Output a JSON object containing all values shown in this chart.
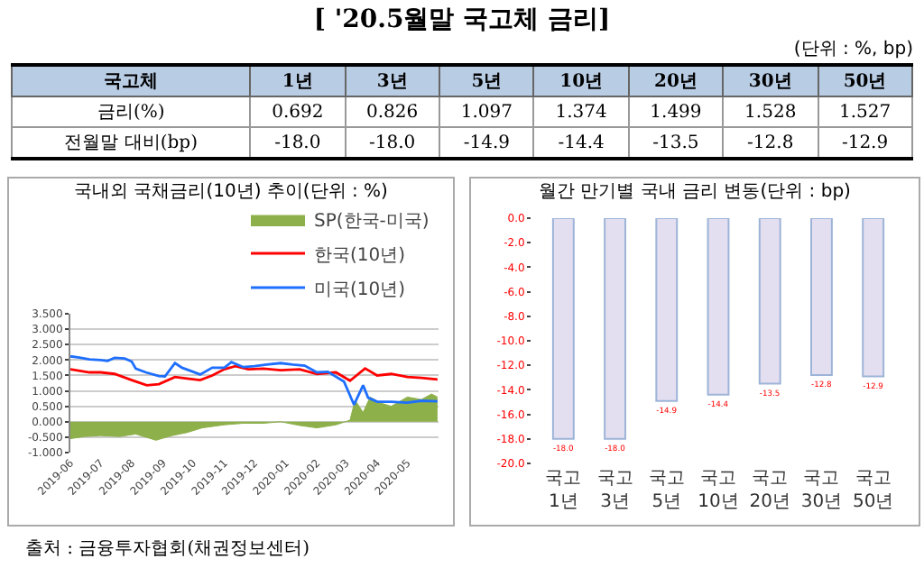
{
  "chart_data": [
    {
      "type": "other",
      "title": "[ '20.5월말 국고체 금리]",
      "subtitle": "(단위 : %, bp)",
      "xlabel": "국고체",
      "categories": [
        "1년",
        "3년",
        "5년",
        "10년",
        "20년",
        "30년",
        "50년"
      ],
      "series": [
        {
          "name": "금리(%)",
          "values": [
            0.692,
            0.826,
            1.097,
            1.374,
            1.499,
            1.528,
            1.527
          ],
          "value_labels": [
            "0.692",
            "0.826",
            "1.097",
            "1.374",
            "1.499",
            "1.528",
            "1.527"
          ]
        },
        {
          "name": "전월말 대비(bp)",
          "values": [
            -18.0,
            -18.0,
            -14.9,
            -14.4,
            -13.5,
            -12.8,
            -12.9
          ],
          "value_labels": [
            "-18.0",
            "-18.0",
            "-14.9",
            "-14.4",
            "-13.5",
            "-12.8",
            "-12.9"
          ]
        }
      ],
      "data_labels": true,
      "annotations": [
        "출처 : 금융투자협회(채권정보센터)"
      ]
    },
    {
      "type": "line",
      "title": "국내외 국채금리(10년) 추이(단위 : %)",
      "xlim": [
        "2019-06-01",
        "2020-06-01"
      ],
      "xticks": [
        {
          "value": "2019-06",
          "label": "2019-06"
        },
        {
          "value": "2019-07",
          "label": "2019-07"
        },
        {
          "value": "2019-08",
          "label": "2019-08"
        },
        {
          "value": "2019-09",
          "label": "2019-09"
        },
        {
          "value": "2019-10",
          "label": "2019-10"
        },
        {
          "value": "2019-11",
          "label": "2019-11"
        },
        {
          "value": "2019-12",
          "label": "2019-12"
        },
        {
          "value": "2020-01",
          "label": "2020-01"
        },
        {
          "value": "2020-02",
          "label": "2020-02"
        },
        {
          "value": "2020-03",
          "label": "2020-03"
        },
        {
          "value": "2020-04",
          "label": "2020-04"
        },
        {
          "value": "2020-05",
          "label": "2020-05"
        }
      ],
      "ylim": [
        -1.0,
        3.5
      ],
      "yticks": [
        {
          "value": -1,
          "label": "-1.000"
        },
        {
          "value": -0.5,
          "label": "-0.500"
        },
        {
          "value": 0,
          "label": "0.000"
        },
        {
          "value": 0.5,
          "label": "0.500"
        },
        {
          "value": 1,
          "label": "1.000"
        },
        {
          "value": 1.5,
          "label": "1.500"
        },
        {
          "value": 2,
          "label": "2.000"
        },
        {
          "value": 2.5,
          "label": "2.500"
        },
        {
          "value": 3,
          "label": "3.000"
        },
        {
          "value": 3.5,
          "label": "3.500"
        }
      ],
      "grid": "y",
      "legend": "top right",
      "marker": "none",
      "line_style": "solid",
      "series": [
        {
          "name": "SP(한국-미국)",
          "type": "area",
          "color": "#8db04a",
          "x": [
            "2019-06-01",
            "2019-06-15",
            "2019-07-01",
            "2019-07-20",
            "2019-08-05",
            "2019-08-25",
            "2019-09-10",
            "2019-09-25",
            "2019-10-10",
            "2019-11-01",
            "2019-11-20",
            "2019-12-10",
            "2019-12-27",
            "2020-01-15",
            "2020-02-01",
            "2020-02-20",
            "2020-03-05",
            "2020-03-10",
            "2020-03-18",
            "2020-03-25",
            "2020-04-05",
            "2020-04-15",
            "2020-05-01",
            "2020-05-15",
            "2020-05-25",
            "2020-05-31"
          ],
          "values": [
            -0.55,
            -0.48,
            -0.45,
            -0.48,
            -0.4,
            -0.6,
            -0.45,
            -0.35,
            -0.2,
            -0.1,
            -0.05,
            -0.05,
            0.0,
            -0.12,
            -0.2,
            -0.1,
            0.05,
            0.7,
            0.3,
            0.8,
            0.6,
            0.5,
            0.8,
            0.72,
            0.9,
            0.8
          ]
        },
        {
          "name": "한국(10년)",
          "type": "line",
          "color": "#ff0000",
          "x": [
            "2019-06-01",
            "2019-06-20",
            "2019-07-01",
            "2019-07-15",
            "2019-08-01",
            "2019-08-16",
            "2019-08-28",
            "2019-09-13",
            "2019-09-25",
            "2019-10-08",
            "2019-10-20",
            "2019-11-01",
            "2019-11-12",
            "2019-11-25",
            "2019-12-10",
            "2019-12-27",
            "2020-01-15",
            "2020-02-01",
            "2020-02-20",
            "2020-03-05",
            "2020-03-20",
            "2020-04-01",
            "2020-04-15",
            "2020-05-01",
            "2020-05-15",
            "2020-05-31"
          ],
          "values": [
            1.7,
            1.6,
            1.6,
            1.55,
            1.35,
            1.18,
            1.22,
            1.45,
            1.4,
            1.35,
            1.5,
            1.7,
            1.8,
            1.7,
            1.72,
            1.67,
            1.7,
            1.55,
            1.6,
            1.33,
            1.73,
            1.5,
            1.55,
            1.45,
            1.42,
            1.37
          ]
        },
        {
          "name": "미국(10년)",
          "type": "line",
          "color": "#1f6fff",
          "x": [
            "2019-06-01",
            "2019-06-10",
            "2019-06-20",
            "2019-07-01",
            "2019-07-08",
            "2019-07-15",
            "2019-07-25",
            "2019-08-01",
            "2019-08-05",
            "2019-08-15",
            "2019-08-28",
            "2019-09-03",
            "2019-09-13",
            "2019-09-20",
            "2019-10-01",
            "2019-10-08",
            "2019-10-20",
            "2019-11-01",
            "2019-11-08",
            "2019-11-20",
            "2019-12-01",
            "2019-12-13",
            "2019-12-27",
            "2020-01-08",
            "2020-01-20",
            "2020-02-01",
            "2020-02-12",
            "2020-02-28",
            "2020-03-09",
            "2020-03-18",
            "2020-03-23",
            "2020-04-01",
            "2020-04-15",
            "2020-05-01",
            "2020-05-15",
            "2020-05-31"
          ],
          "values": [
            2.12,
            2.08,
            2.02,
            2.0,
            1.97,
            2.07,
            2.05,
            1.95,
            1.72,
            1.6,
            1.48,
            1.47,
            1.9,
            1.75,
            1.62,
            1.53,
            1.75,
            1.75,
            1.93,
            1.77,
            1.8,
            1.85,
            1.9,
            1.85,
            1.82,
            1.6,
            1.62,
            1.3,
            0.55,
            1.18,
            0.78,
            0.65,
            0.65,
            0.62,
            0.68,
            0.66
          ]
        }
      ]
    },
    {
      "type": "bar",
      "title": "월간 만기별 국내 금리 변동(단위 : bp)",
      "categories": [
        "국고 1년",
        "국고 3년",
        "국고 5년",
        "국고 10년",
        "국고 20년",
        "국고 30년",
        "국고 50년"
      ],
      "values": [
        -18.0,
        -18.0,
        -14.9,
        -14.4,
        -13.5,
        -12.8,
        -12.9
      ],
      "value_labels": [
        "-18.0",
        "-18.0",
        "-14.9",
        "-14.4",
        "-13.5",
        "-12.8",
        "-12.9"
      ],
      "color": "#e4dff0",
      "ylim": [
        -20,
        0
      ],
      "yticks": [
        {
          "value": -20,
          "label": "-20.0"
        },
        {
          "value": -18,
          "label": "-18.0"
        },
        {
          "value": -16,
          "label": "-16.0"
        },
        {
          "value": -14,
          "label": "-14.0"
        },
        {
          "value": -12,
          "label": "-12.0"
        },
        {
          "value": -10,
          "label": "-10.0"
        },
        {
          "value": -8,
          "label": "-8.0"
        },
        {
          "value": -6,
          "label": "-6.0"
        },
        {
          "value": -4,
          "label": "-4.0"
        },
        {
          "value": -2,
          "label": "-2.0"
        },
        {
          "value": 0,
          "label": "0.0"
        }
      ],
      "grid": false,
      "legend": false
    }
  ]
}
